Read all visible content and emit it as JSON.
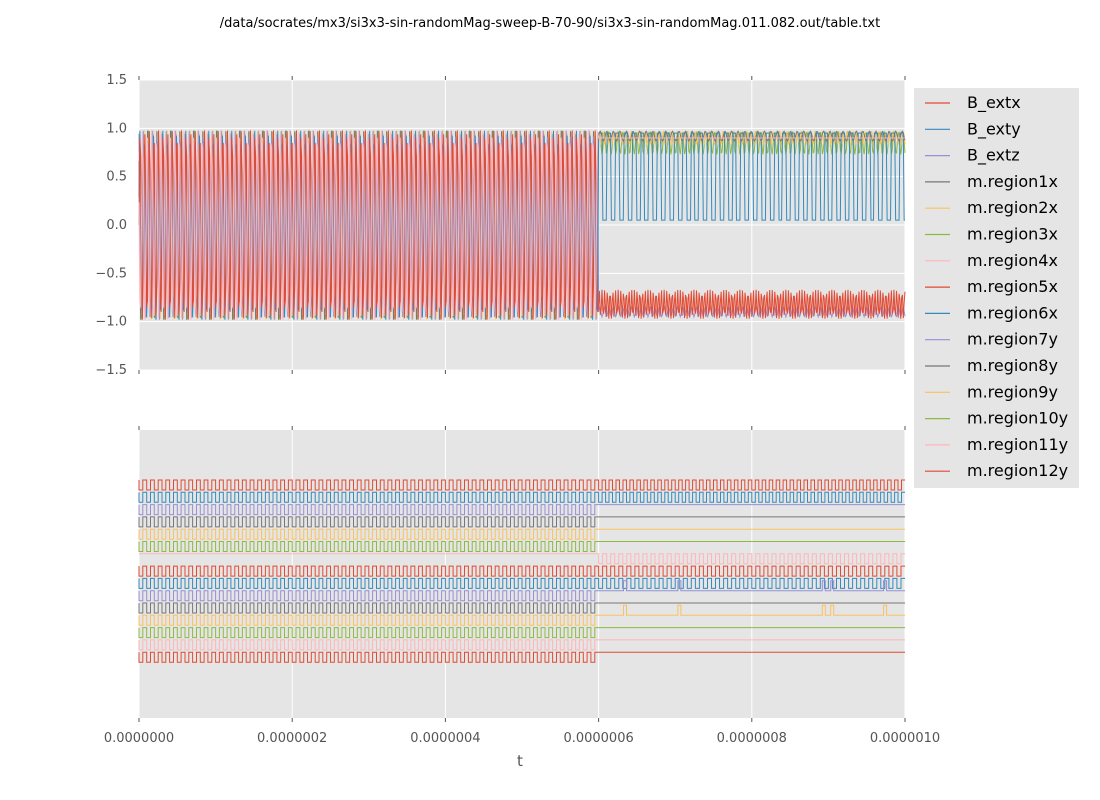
{
  "chart_data": [
    {
      "panel": "top",
      "type": "line",
      "title": "/data/socrates/mx3/si3x3-sin-randomMag-sweep-B-70-90/si3x3-sin-randomMag.011.082.out/table.txt",
      "xlabel": "",
      "ylabel": "",
      "xlim": [
        0,
        1e-06
      ],
      "ylim": [
        -1.5,
        1.5
      ],
      "x_ticks": [
        0,
        2e-07,
        4e-07,
        6e-07,
        8e-07,
        1e-06
      ],
      "y_ticks": [
        1.5,
        1.0,
        0.5,
        0.0,
        -0.5,
        -1.0,
        -1.5
      ],
      "y_tick_labels": [
        "1.5",
        "1.0",
        "0.5",
        "0.0",
        "−0.5",
        "−1.0",
        "−1.5"
      ],
      "background": "#e5e5e5",
      "grid": true,
      "description_of_series": {
        "regime_1": {
          "x_range": [
            0,
            6e-07
          ],
          "behavior": "fast oscillation between -1.0 and 1.0"
        },
        "regime_2": {
          "x_range": [
            6e-07,
            1e-06
          ],
          "behavior": "square-like switching; blue series between 0.05 and 0.97, red series near -0.85"
        }
      }
    },
    {
      "panel": "bottom",
      "type": "line",
      "xlabel": "t",
      "xlim": [
        0,
        1e-06
      ],
      "x_ticks": [
        0,
        2e-07,
        4e-07,
        6e-07,
        8e-07,
        1e-06
      ],
      "x_tick_labels": [
        "0.0000000",
        "0.0000002",
        "0.0000004",
        "0.0000006",
        "0.0000008",
        "0.0000010"
      ],
      "y_tick_labels": [],
      "background": "#e5e5e5",
      "grid": true,
      "offset_traces": [
        {
          "pattern": "square",
          "regime_2": "square"
        },
        {
          "pattern": "square",
          "regime_2": "square"
        },
        {
          "pattern": "square",
          "regime_2": "flat"
        },
        {
          "pattern": "square",
          "regime_2": "flat"
        },
        {
          "pattern": "square",
          "regime_2": "flat"
        },
        {
          "pattern": "square",
          "regime_2": "flat"
        },
        {
          "pattern": "flat",
          "regime_2": "sparse-square"
        },
        {
          "pattern": "square",
          "regime_2": "sparse-square"
        },
        {
          "pattern": "square",
          "regime_2": "sparse-square"
        },
        {
          "pattern": "square",
          "regime_2": "flat-with-spikes"
        },
        {
          "pattern": "square",
          "regime_2": "flat"
        },
        {
          "pattern": "square",
          "regime_2": "flat-with-spikes"
        },
        {
          "pattern": "square",
          "regime_2": "flat"
        },
        {
          "pattern": "square",
          "regime_2": "flat"
        },
        {
          "pattern": "square",
          "regime_2": "flat"
        }
      ]
    }
  ],
  "legend": {
    "placement": "right, outside top axes",
    "entries": [
      {
        "name": "B_extx",
        "color": "#e24a33"
      },
      {
        "name": "B_exty",
        "color": "#348abd"
      },
      {
        "name": "B_extz",
        "color": "#988ed5"
      },
      {
        "name": "m.region1x",
        "color": "#777777"
      },
      {
        "name": "m.region2x",
        "color": "#fbc15e"
      },
      {
        "name": "m.region3x",
        "color": "#8eba42"
      },
      {
        "name": "m.region4x",
        "color": "#ffb5b8"
      },
      {
        "name": "m.region5x",
        "color": "#e24a33"
      },
      {
        "name": "m.region6x",
        "color": "#348abd"
      },
      {
        "name": "m.region7y",
        "color": "#988ed5"
      },
      {
        "name": "m.region8y",
        "color": "#777777"
      },
      {
        "name": "m.region9y",
        "color": "#fbc15e"
      },
      {
        "name": "m.region10y",
        "color": "#8eba42"
      },
      {
        "name": "m.region11y",
        "color": "#ffb5b8"
      },
      {
        "name": "m.region12y",
        "color": "#e24a33"
      }
    ]
  }
}
